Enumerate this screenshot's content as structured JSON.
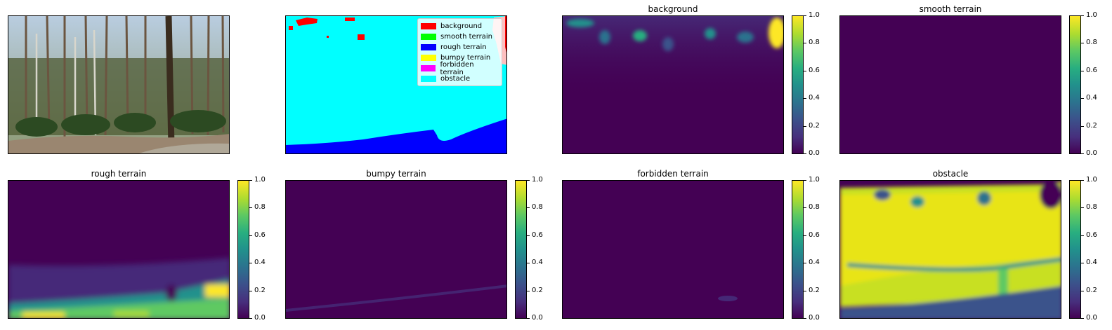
{
  "chart_data": [
    {
      "type": "image",
      "title": "",
      "content": "photo"
    },
    {
      "type": "image",
      "title": "",
      "content": "segmentation",
      "legend": [
        {
          "label": "background",
          "color": "#ff0000"
        },
        {
          "label": "smooth terrain",
          "color": "#00ff00"
        },
        {
          "label": "rough terrain",
          "color": "#0000ff"
        },
        {
          "label": "bumpy terrain",
          "color": "#ffff00"
        },
        {
          "label": "forbidden terrain",
          "color": "#ff00ff"
        },
        {
          "label": "obstacle",
          "color": "#00ffff"
        }
      ]
    },
    {
      "type": "heatmap",
      "title": "background",
      "colormap": "viridis",
      "clim": [
        0,
        1
      ]
    },
    {
      "type": "heatmap",
      "title": "smooth terrain",
      "colormap": "viridis",
      "clim": [
        0,
        1
      ]
    },
    {
      "type": "heatmap",
      "title": "rough terrain",
      "colormap": "viridis",
      "clim": [
        0,
        1
      ]
    },
    {
      "type": "heatmap",
      "title": "bumpy terrain",
      "colormap": "viridis",
      "clim": [
        0,
        1
      ]
    },
    {
      "type": "heatmap",
      "title": "forbidden terrain",
      "colormap": "viridis",
      "clim": [
        0,
        1
      ]
    },
    {
      "type": "heatmap",
      "title": "obstacle",
      "colormap": "viridis",
      "clim": [
        0,
        1
      ]
    }
  ],
  "colorbar_ticks": [
    "0.0",
    "0.2",
    "0.4",
    "0.6",
    "0.8",
    "1.0"
  ],
  "colors": {
    "viridis_low": "#440154",
    "viridis_high": "#fde725"
  }
}
